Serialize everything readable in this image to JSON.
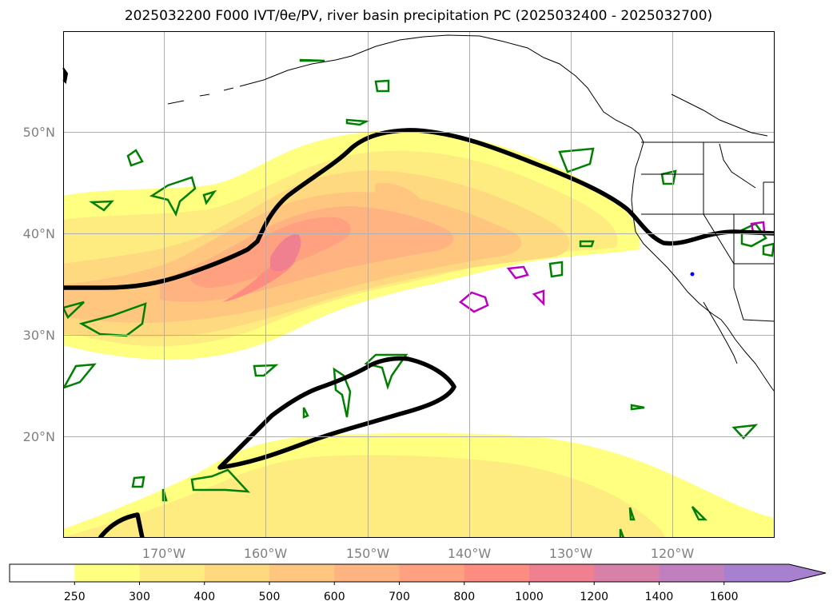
{
  "title": "2025032200 F000 IVT/θe/PV, river basin precipitation PC (2025032400 - 2025032700)",
  "map": {
    "lon_range": [
      -180,
      -110
    ],
    "lat_range": [
      10,
      60
    ],
    "lat_ticks": [
      {
        "value": 20,
        "label": "20°N"
      },
      {
        "value": 30,
        "label": "30°N"
      },
      {
        "value": 40,
        "label": "40°N"
      },
      {
        "value": 50,
        "label": "50°N"
      }
    ],
    "lon_ticks": [
      {
        "value": -170,
        "label": "170°W"
      },
      {
        "value": -160,
        "label": "160°W"
      },
      {
        "value": -150,
        "label": "150°W"
      },
      {
        "value": -140,
        "label": "140°W"
      },
      {
        "value": -130,
        "label": "130°W"
      },
      {
        "value": -120,
        "label": "120°W"
      }
    ],
    "grid": true
  },
  "colorbar": {
    "levels": [
      "250",
      "300",
      "400",
      "500",
      "600",
      "700",
      "800",
      "1000",
      "1200",
      "1400",
      "1600"
    ],
    "colors": [
      "#ffffff",
      "#ffff80",
      "#ffec80",
      "#ffd980",
      "#ffc680",
      "#ffb380",
      "#ffa080",
      "#ff8c80",
      "#f08090",
      "#d880a8",
      "#c080c0",
      "#a880d0"
    ],
    "extend": "max"
  }
}
